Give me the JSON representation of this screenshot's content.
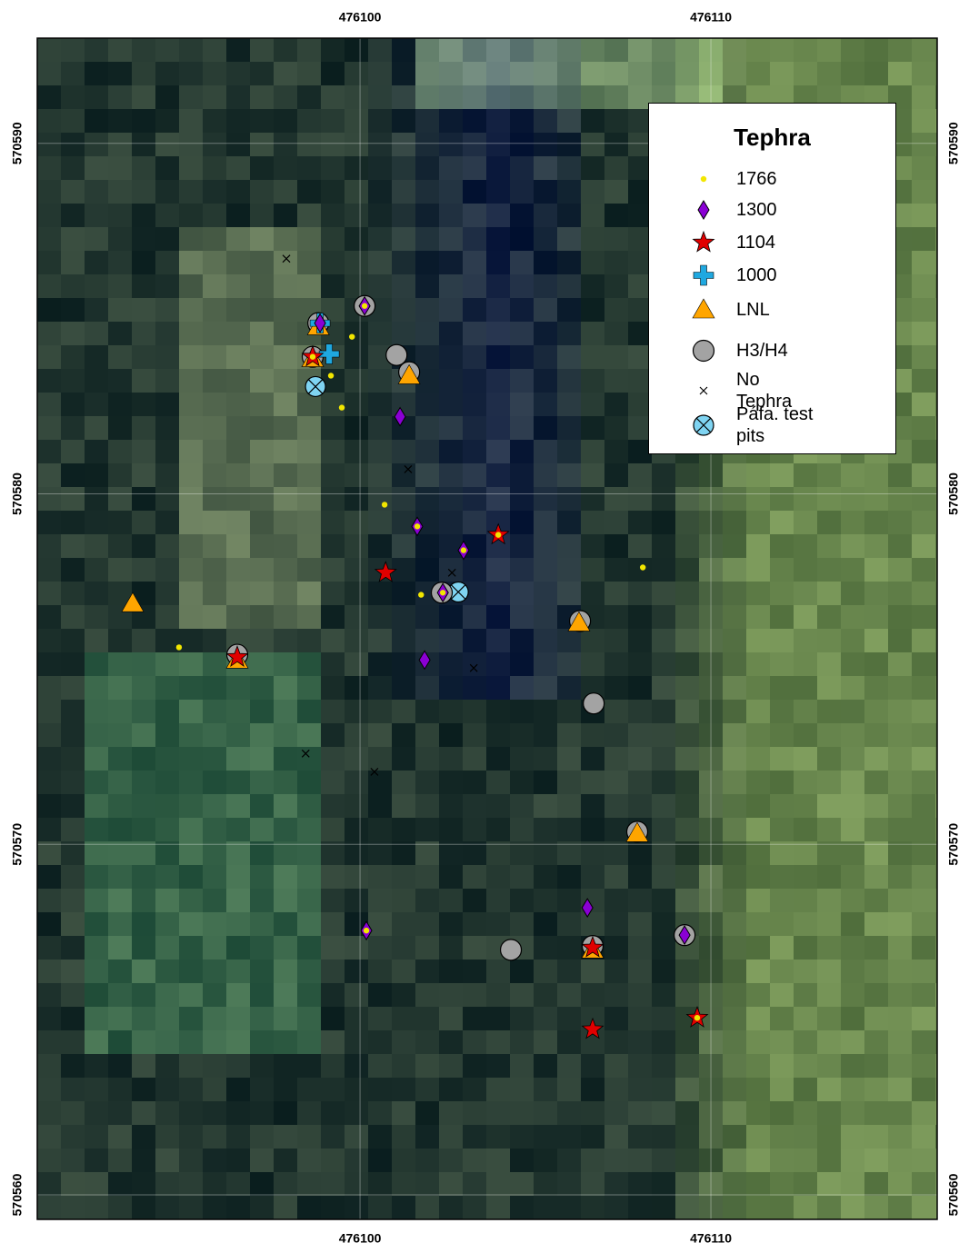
{
  "chart_data": {
    "type": "scatter",
    "xlim": [
      476090.8,
      476116.45
    ],
    "ylim": [
      570559.3,
      570593.0
    ],
    "xticks": [
      476100,
      476110
    ],
    "yticks": [
      570560,
      570570,
      570580,
      570590
    ],
    "grid": true,
    "legend_title": "Tephra",
    "legend": "upper right",
    "series": [
      {
        "name": "1766",
        "color": "#f2e600",
        "marker": "dot",
        "x": [
          476100.13,
          476099.77,
          476099.17,
          476099.48,
          476100.7,
          476101.74,
          476094.84,
          476108.06,
          476102.36,
          476100.18,
          476102.95,
          476101.63,
          476098.65,
          476109.61,
          476103.94
        ],
        "values": [
          570585.36,
          570584.48,
          570583.37,
          570582.46,
          570579.69,
          570577.12,
          570575.62,
          570577.9,
          570577.18,
          570567.54,
          570578.39,
          570579.07,
          570583.91,
          570565.05,
          570578.83
        ]
      },
      {
        "name": "1300",
        "color": "#8a00d4",
        "marker": "diamond",
        "x": [
          476098.86,
          476100.13,
          476101.14,
          476101.63,
          476102.95,
          476102.36,
          476101.84,
          476106.48,
          476109.25,
          476100.18
        ],
        "values": [
          570584.87,
          570585.36,
          570582.2,
          570579.07,
          570578.39,
          570577.18,
          570575.26,
          570568.19,
          570567.41,
          570567.54
        ]
      },
      {
        "name": "1104",
        "color": "#e00000",
        "marker": "star",
        "x": [
          476098.65,
          476100.73,
          476103.94,
          476096.5,
          476106.63,
          476106.63,
          476109.61
        ],
        "values": [
          570583.91,
          570577.75,
          570578.83,
          570575.34,
          570567.05,
          570564.72,
          570565.05
        ]
      },
      {
        "name": "1000",
        "color": "#1fa8e0",
        "marker": "cross",
        "x": [
          476098.86,
          476099.12
        ],
        "values": [
          570584.87,
          570583.99
        ]
      },
      {
        "name": "LNL",
        "color": "#ffa500",
        "marker": "triangle",
        "x": [
          476098.65,
          476098.81,
          476101.4,
          476093.52,
          476106.24,
          476107.9,
          476096.5,
          476106.63
        ],
        "values": [
          570583.86,
          570584.77,
          570583.37,
          570576.87,
          570576.32,
          570570.31,
          570575.26,
          570566.99
        ]
      },
      {
        "name": "H3/H4",
        "color": "#a3a3a3",
        "marker": "circle",
        "x": [
          476100.13,
          476101.04,
          476098.65,
          476098.81,
          476101.4,
          476102.33,
          476106.27,
          476106.66,
          476107.9,
          476096.5,
          476104.3,
          476106.63,
          476109.25
        ],
        "values": [
          570585.36,
          570583.96,
          570583.91,
          570584.87,
          570583.47,
          570577.18,
          570576.37,
          570574.02,
          570570.36,
          570575.41,
          570566.99,
          570567.1,
          570567.41
        ]
      },
      {
        "name": "No Tephra",
        "color": "#000000",
        "marker": "x",
        "x": [
          476097.9,
          476101.37,
          476102.62,
          476103.24,
          476098.45,
          476100.41
        ],
        "values": [
          570586.71,
          570580.7,
          570577.75,
          570575.03,
          570572.59,
          570572.07
        ]
      },
      {
        "name": "Páfa. test pits",
        "color": "#7fd4f2",
        "marker": "pit",
        "x": [
          476098.73,
          476102.8,
          476098.81
        ],
        "values": [
          570583.06,
          570577.2,
          570584.84
        ]
      }
    ]
  }
}
